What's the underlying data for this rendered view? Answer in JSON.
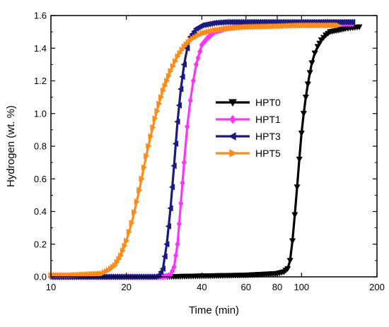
{
  "chart_data": {
    "type": "line",
    "xlabel": "Time (min)",
    "ylabel": "Hydrogen (wt. %)",
    "x_scale": "log",
    "xlim": [
      10,
      200
    ],
    "ylim": [
      0,
      1.6
    ],
    "x_ticks": [
      10,
      20,
      40,
      60,
      80,
      100,
      200
    ],
    "y_ticks": [
      0.0,
      0.2,
      0.4,
      0.6,
      0.8,
      1.0,
      1.2,
      1.4,
      1.6
    ],
    "x_tick_labels": [
      "10",
      "20",
      "40",
      "60",
      "80",
      "100",
      "200"
    ],
    "y_tick_labels": [
      "0.0",
      "0.2",
      "0.4",
      "0.6",
      "0.8",
      "1.0",
      "1.2",
      "1.4",
      "1.6"
    ],
    "grid": false,
    "legend_position": "center-right",
    "series": [
      {
        "name": "HPT0",
        "color": "#000000",
        "marker": "triangle-down",
        "x": [
          28,
          40,
          60,
          80,
          85,
          88,
          90,
          92,
          94,
          96,
          98,
          100,
          102,
          104,
          106,
          108,
          110,
          113,
          116,
          120,
          125,
          130,
          140,
          150,
          160,
          170
        ],
        "y": [
          0.0,
          0.005,
          0.01,
          0.02,
          0.03,
          0.05,
          0.1,
          0.22,
          0.38,
          0.55,
          0.72,
          0.88,
          1.0,
          1.1,
          1.18,
          1.25,
          1.31,
          1.37,
          1.41,
          1.45,
          1.48,
          1.5,
          1.51,
          1.52,
          1.525,
          1.53
        ]
      },
      {
        "name": "HPT1",
        "color": "#ff33ff",
        "marker": "diamond",
        "x": [
          10,
          20,
          28,
          30,
          31,
          32,
          33,
          34,
          35,
          36,
          37,
          38,
          40,
          42,
          45,
          50,
          60,
          80,
          100,
          120,
          140,
          160
        ],
        "y": [
          0.0,
          0.0,
          0.0,
          0.01,
          0.06,
          0.2,
          0.45,
          0.7,
          0.92,
          1.08,
          1.2,
          1.3,
          1.42,
          1.46,
          1.5,
          1.52,
          1.54,
          1.55,
          1.55,
          1.55,
          1.55,
          1.55
        ]
      },
      {
        "name": "HPT3",
        "color": "#1a1a80",
        "marker": "triangle-left",
        "x": [
          10,
          20,
          26,
          27,
          28,
          29,
          30,
          31,
          32,
          33,
          34,
          35,
          36,
          38,
          40,
          45,
          50,
          60,
          80,
          100,
          120,
          140,
          160
        ],
        "y": [
          0.0,
          0.0,
          0.0,
          0.01,
          0.05,
          0.2,
          0.42,
          0.68,
          0.95,
          1.15,
          1.3,
          1.4,
          1.47,
          1.52,
          1.54,
          1.555,
          1.56,
          1.56,
          1.56,
          1.56,
          1.56,
          1.56,
          1.56
        ]
      },
      {
        "name": "HPT5",
        "color": "#ff8c1a",
        "marker": "triangle-right",
        "x": [
          10,
          12,
          14,
          16,
          17,
          18,
          19,
          20,
          21,
          22,
          23,
          24,
          25,
          26,
          27,
          28,
          30,
          32,
          34,
          36,
          40,
          45,
          50,
          60,
          80,
          100,
          120,
          140
        ],
        "y": [
          0.01,
          0.01,
          0.015,
          0.02,
          0.04,
          0.07,
          0.13,
          0.22,
          0.33,
          0.46,
          0.6,
          0.74,
          0.86,
          0.97,
          1.06,
          1.14,
          1.26,
          1.35,
          1.41,
          1.45,
          1.49,
          1.51,
          1.52,
          1.53,
          1.535,
          1.54,
          1.54,
          1.54
        ]
      }
    ]
  }
}
